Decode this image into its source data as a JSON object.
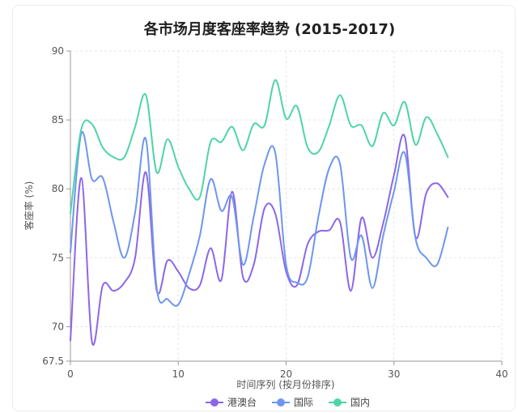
{
  "chart_data": {
    "type": "line",
    "title": "各市场月度客座率趋势 (2015-2017)",
    "xlabel": "时间序列 (按月份排序)",
    "ylabel": "客座率 (%)",
    "xlim": [
      0,
      40
    ],
    "ylim": [
      67.5,
      90
    ],
    "x_ticks": [
      0,
      10,
      20,
      30,
      40
    ],
    "y_ticks": [
      67.5,
      70,
      75,
      80,
      85,
      90
    ],
    "grid": true,
    "legend_position": "bottom",
    "x": [
      0,
      1,
      2,
      3,
      4,
      5,
      6,
      7,
      8,
      9,
      10,
      11,
      12,
      13,
      14,
      15,
      16,
      17,
      18,
      19,
      20,
      21,
      22,
      23,
      24,
      25,
      26,
      27,
      28,
      29,
      30,
      31,
      32,
      33,
      34,
      35
    ],
    "series": [
      {
        "name": "港澳台",
        "color": "#8b67e8",
        "values": [
          69.0,
          80.8,
          68.9,
          73.0,
          72.6,
          73.2,
          75.0,
          81.2,
          72.6,
          74.8,
          74.0,
          72.8,
          73.0,
          75.7,
          73.4,
          79.8,
          73.6,
          74.5,
          78.6,
          78.2,
          74.0,
          73.0,
          76.0,
          76.9,
          77.0,
          77.6,
          72.6,
          77.9,
          75.0,
          77.5,
          81.0,
          83.8,
          76.5,
          79.7,
          80.4,
          79.4
        ]
      },
      {
        "name": "国际",
        "color": "#6d96ee",
        "values": [
          75.4,
          84.0,
          80.7,
          80.8,
          77.6,
          75.0,
          78.3,
          83.6,
          72.8,
          72.0,
          71.6,
          73.8,
          76.6,
          80.7,
          78.4,
          79.4,
          74.5,
          78.0,
          81.8,
          82.6,
          74.5,
          73.2,
          73.6,
          78.0,
          81.5,
          81.8,
          75.0,
          76.6,
          72.8,
          76.6,
          79.8,
          82.6,
          76.4,
          75.0,
          74.5,
          77.2
        ]
      },
      {
        "name": "国内",
        "color": "#4fd4a8",
        "values": [
          78.2,
          84.3,
          84.7,
          83.0,
          82.3,
          82.3,
          84.5,
          86.8,
          81.2,
          83.6,
          81.6,
          80.0,
          79.4,
          83.4,
          83.4,
          84.5,
          82.8,
          84.7,
          84.6,
          87.9,
          85.1,
          86.0,
          83.0,
          82.7,
          84.6,
          86.8,
          84.6,
          84.6,
          83.1,
          85.5,
          84.6,
          86.3,
          83.2,
          85.2,
          84.0,
          82.3
        ]
      }
    ]
  }
}
